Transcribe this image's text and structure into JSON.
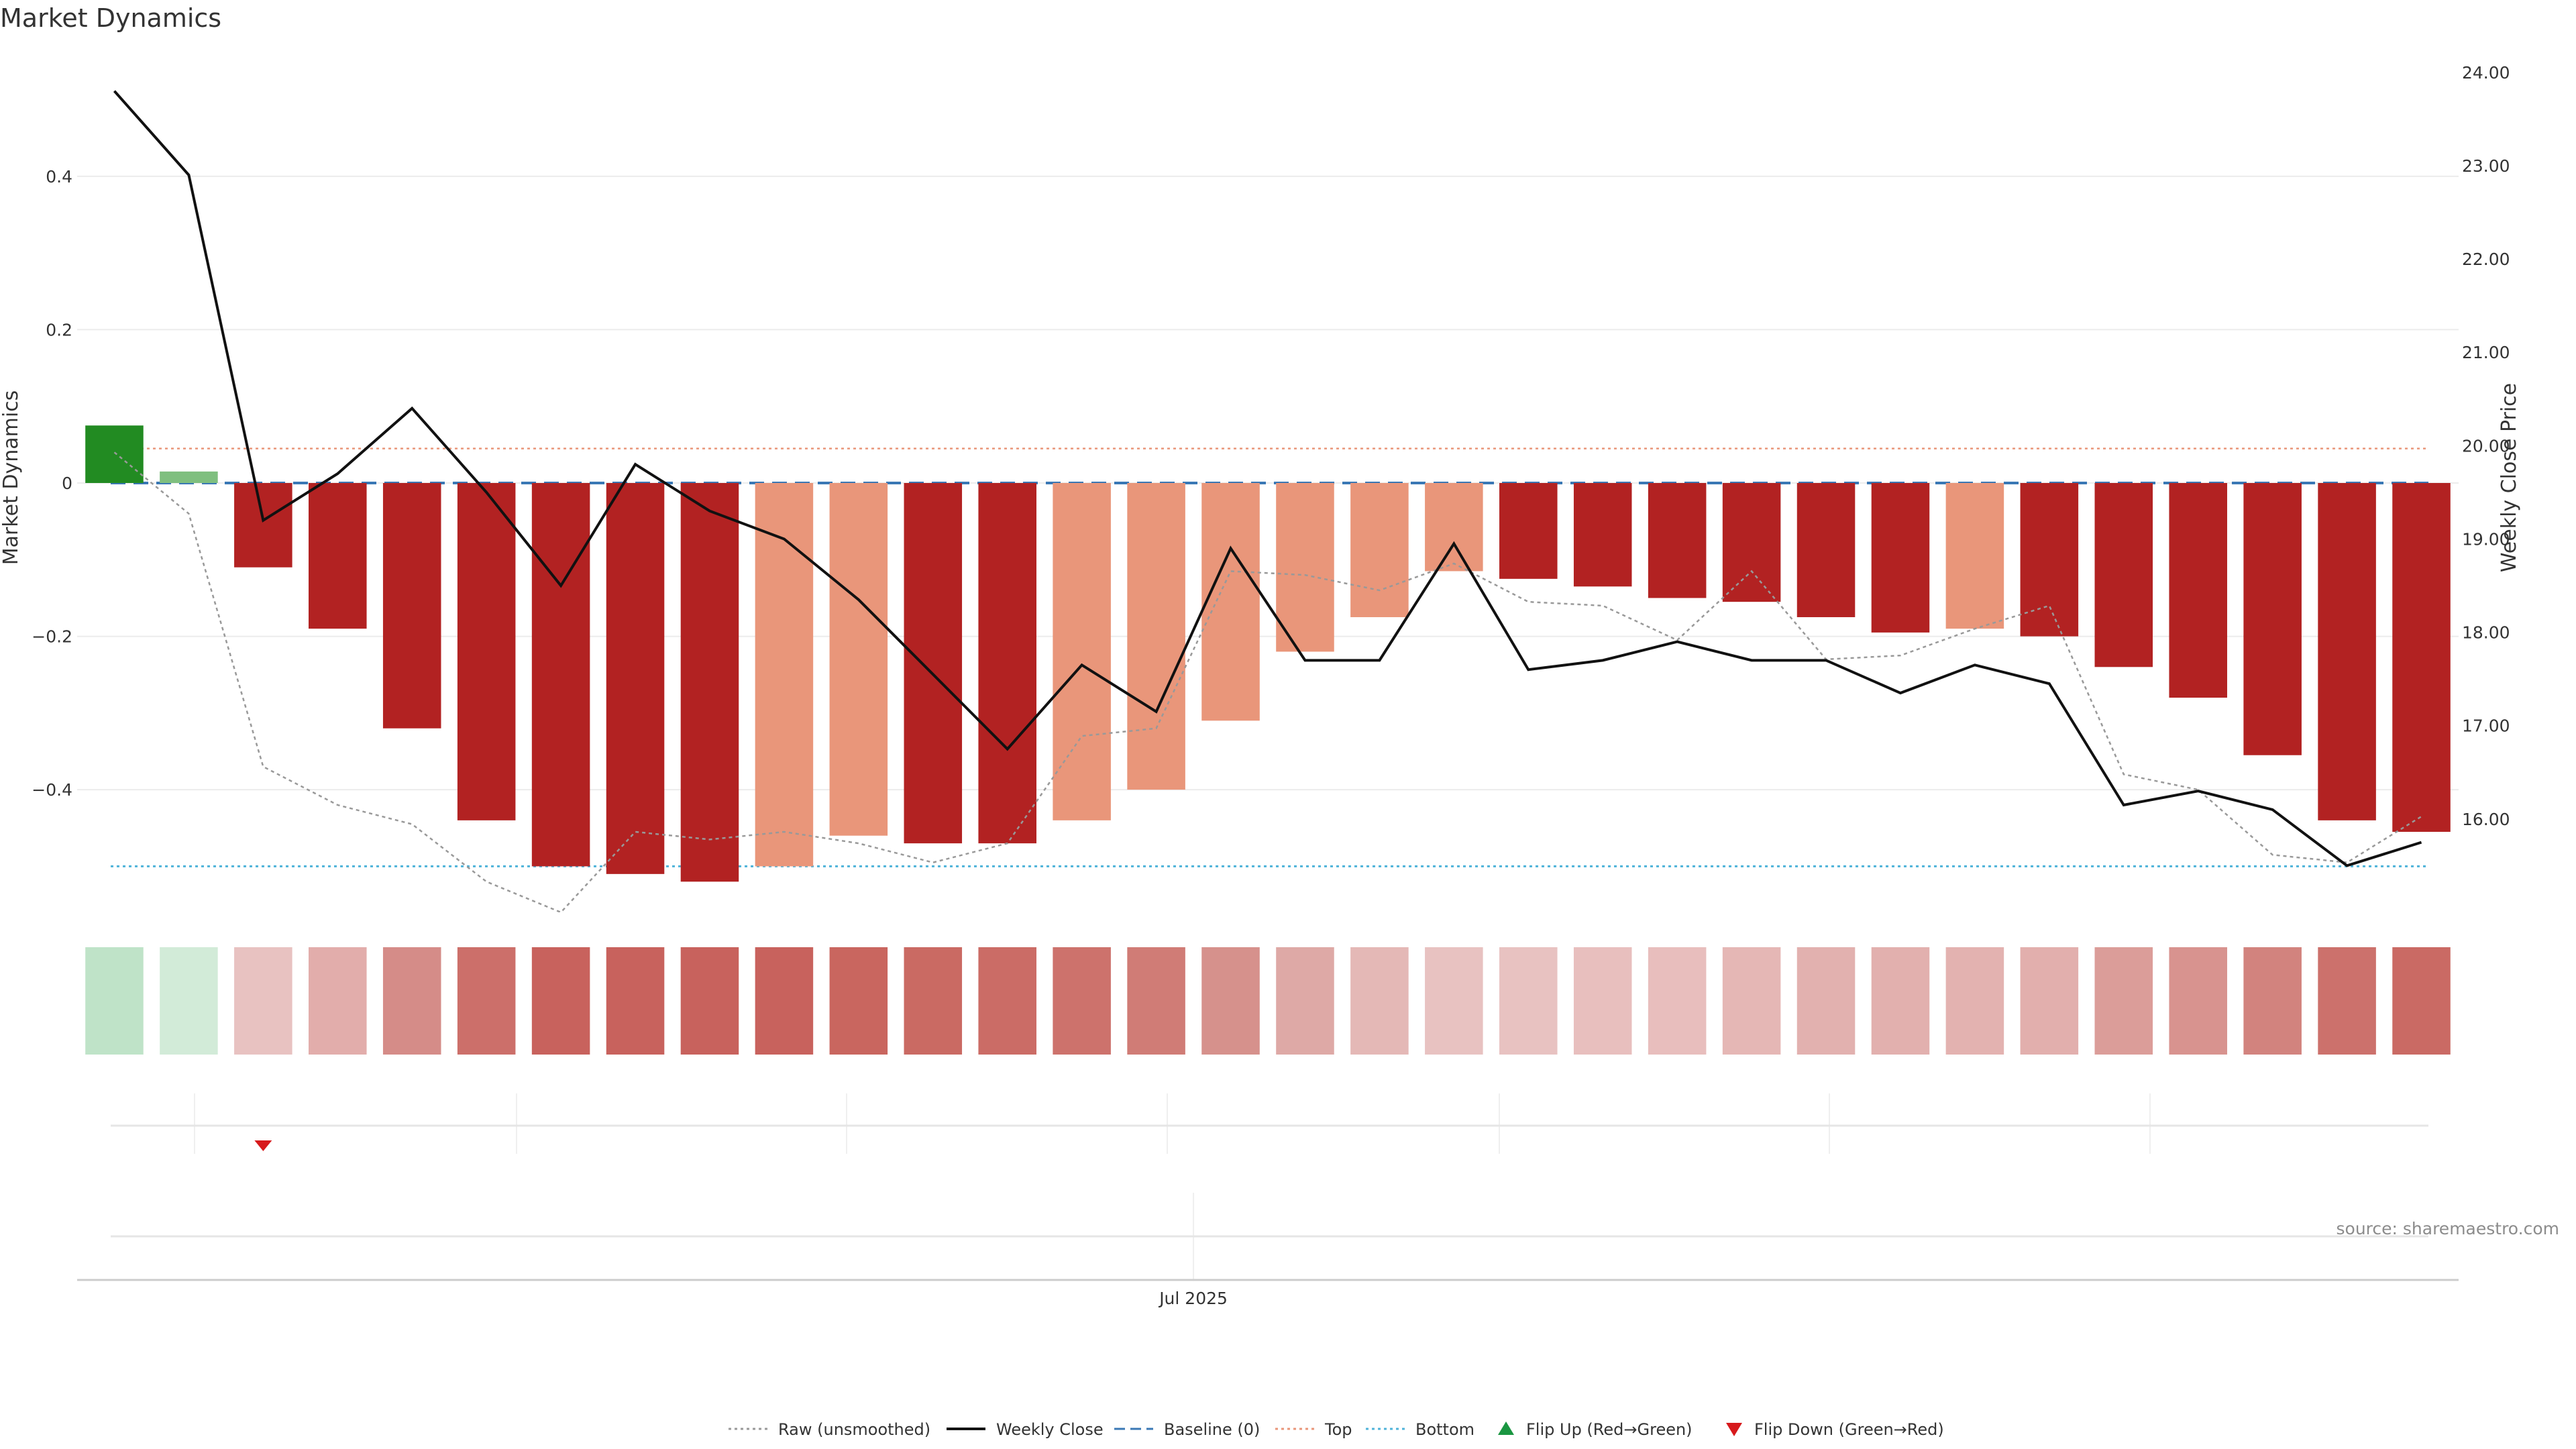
{
  "chart_data": {
    "type": "bar",
    "title": "Market Dynamics",
    "ylabel_left": "Market Dynamics",
    "ylabel_right": "Weekly Close Price",
    "xlabel": "",
    "x_tick_labels": [
      "Jul 2025"
    ],
    "x_tick_index": 14.5,
    "ylim_left": [
      -0.56,
      0.56
    ],
    "ylim_right": [
      15.0,
      24.2
    ],
    "yticks_left": [
      {
        "value": 0.4,
        "label": "0.4"
      },
      {
        "value": 0.2,
        "label": "0.2"
      },
      {
        "value": 0,
        "label": "0"
      },
      {
        "value": -0.2,
        "label": "−0.2"
      },
      {
        "value": -0.4,
        "label": "−0.4"
      }
    ],
    "yticks_right": [
      {
        "value": 24,
        "label": "24.00"
      },
      {
        "value": 23,
        "label": "23.00"
      },
      {
        "value": 22,
        "label": "22.00"
      },
      {
        "value": 21,
        "label": "21.00"
      },
      {
        "value": 20,
        "label": "20.00"
      },
      {
        "value": 19,
        "label": "19.00"
      },
      {
        "value": 18,
        "label": "18.00"
      },
      {
        "value": 17,
        "label": "17.00"
      },
      {
        "value": 16,
        "label": "16.00"
      }
    ],
    "bars": [
      0.075,
      0.015,
      -0.11,
      -0.19,
      -0.32,
      -0.44,
      -0.5,
      -0.51,
      -0.52,
      -0.5,
      -0.46,
      -0.47,
      -0.47,
      -0.44,
      -0.4,
      -0.31,
      -0.22,
      -0.175,
      -0.115,
      -0.125,
      -0.135,
      -0.15,
      -0.155,
      -0.175,
      -0.195,
      -0.19,
      -0.2,
      -0.24,
      -0.28,
      -0.355,
      -0.44,
      -0.455
    ],
    "bar_colors": [
      "#228b22",
      "#7fbf7f",
      "#b22222",
      "#b22222",
      "#b22222",
      "#b22222",
      "#b22222",
      "#b22222",
      "#b22222",
      "#e9967a",
      "#e9967a",
      "#b22222",
      "#b22222",
      "#e9967a",
      "#e9967a",
      "#e9967a",
      "#e9967a",
      "#e9967a",
      "#e9967a",
      "#b22222",
      "#b22222",
      "#b22222",
      "#b22222",
      "#b22222",
      "#b22222",
      "#e9967a",
      "#b22222",
      "#b22222",
      "#b22222",
      "#b22222",
      "#b22222",
      "#b22222"
    ],
    "heat_colors": [
      "#bfe3c8",
      "#d2ebd8",
      "#e8c2c1",
      "#e2adab",
      "#d58c88",
      "#cc6f6a",
      "#c8625d",
      "#c8625d",
      "#c8625d",
      "#c8625d",
      "#c9665f",
      "#ca6a63",
      "#cb6c66",
      "#cd726c",
      "#d07c76",
      "#d6918c",
      "#dea9a6",
      "#e4b8b6",
      "#e8c2c1",
      "#e8c2c1",
      "#e8bfbe",
      "#e8bebd",
      "#e5b7b5",
      "#e2b1af",
      "#e2b0ae",
      "#e3b2b0",
      "#e2afad",
      "#db9d99",
      "#d8938f",
      "#d2837e",
      "#cc716c",
      "#ca6a64"
    ],
    "series": [
      {
        "name": "Raw (unsmoothed)",
        "values": [
          0.04,
          -0.04,
          -0.37,
          -0.42,
          -0.445,
          -0.52,
          -0.56,
          -0.455,
          -0.465,
          -0.455,
          -0.47,
          -0.495,
          -0.47,
          -0.33,
          -0.32,
          -0.115,
          -0.12,
          -0.14,
          -0.105,
          -0.155,
          -0.16,
          -0.205,
          -0.115,
          -0.23,
          -0.225,
          -0.19,
          -0.16,
          -0.38,
          -0.4,
          -0.485,
          -0.495,
          -0.435
        ]
      },
      {
        "name": "Weekly Close",
        "values": [
          23.8,
          22.9,
          19.2,
          19.7,
          20.4,
          19.5,
          18.5,
          19.8,
          19.3,
          19.0,
          18.35,
          17.55,
          16.75,
          17.65,
          17.15,
          18.9,
          17.7,
          17.7,
          18.95,
          17.6,
          17.7,
          17.9,
          17.7,
          17.7,
          17.35,
          17.65,
          17.45,
          16.15,
          16.3,
          16.1,
          15.5,
          15.75
        ]
      }
    ],
    "reference_lines": {
      "baseline": 0,
      "top": 0.045,
      "bottom": -0.5
    },
    "flip_down_index": 2.5,
    "legend": {
      "position": "bottom-center",
      "entries": [
        {
          "label": "Raw (unsmoothed)",
          "style": "dotted",
          "color": "#999999"
        },
        {
          "label": "Weekly Close",
          "style": "solid",
          "color": "#111111"
        },
        {
          "label": "Baseline (0)",
          "style": "dashed",
          "color": "#3a78b5"
        },
        {
          "label": "Top",
          "style": "dotted",
          "color": "#e9967a"
        },
        {
          "label": "Bottom",
          "style": "dotted",
          "color": "#4fb3d9"
        },
        {
          "label": "Flip Up (Red→Green)",
          "style": "triangle-up",
          "color": "#1a9641"
        },
        {
          "label": "Flip Down (Green→Red)",
          "style": "triangle-down",
          "color": "#d7191c"
        }
      ]
    },
    "source": "source: sharemaestro.com"
  }
}
